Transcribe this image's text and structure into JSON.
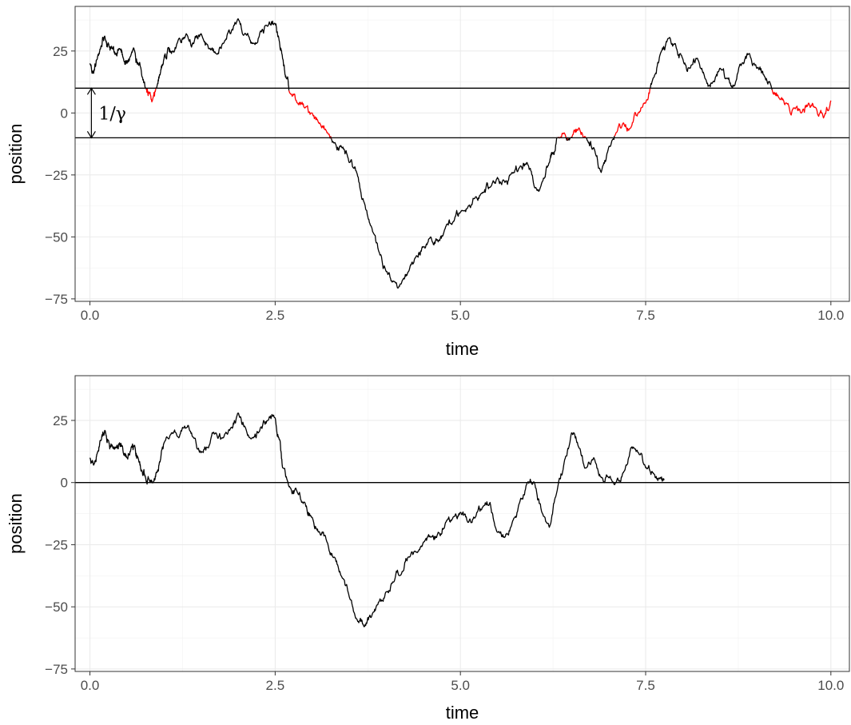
{
  "chart_data": [
    {
      "type": "line",
      "title": "",
      "xlabel": "time",
      "ylabel": "position",
      "xlim": [
        -0.2,
        10.25
      ],
      "ylim": [
        -76,
        43
      ],
      "x_ticks": [
        0.0,
        2.5,
        5.0,
        7.5,
        10.0
      ],
      "x_tick_labels": [
        "0.0",
        "2.5",
        "5.0",
        "7.5",
        "10.0"
      ],
      "y_ticks": [
        25,
        0,
        -25,
        -50,
        -75
      ],
      "y_tick_labels": [
        "25",
        "0",
        "−25",
        "−50",
        "−75"
      ],
      "grid": true,
      "hlines": [
        10,
        -10
      ],
      "annotation": {
        "text": "1/γ",
        "x": 0.02,
        "y_from": 10,
        "y_to": -10
      },
      "highlight_color": "#ff0000",
      "line_color": "#000000",
      "highlight_band": [
        -10,
        10
      ],
      "series": [
        {
          "x": [
            0.0,
            0.05,
            0.1,
            0.15,
            0.2,
            0.25,
            0.3,
            0.35,
            0.4,
            0.45,
            0.5,
            0.55,
            0.6,
            0.65,
            0.7,
            0.75,
            0.8,
            0.85,
            0.9,
            0.95,
            1.0,
            1.05,
            1.1,
            1.2,
            1.3,
            1.4,
            1.5,
            1.6,
            1.7,
            1.8,
            1.9,
            2.0,
            2.1,
            2.2,
            2.3,
            2.4,
            2.5,
            2.55,
            2.6,
            2.65,
            2.7,
            2.8,
            2.9,
            3.0,
            3.1,
            3.2,
            3.3,
            3.4,
            3.5,
            3.6,
            3.7,
            3.8,
            3.9,
            4.0,
            4.1,
            4.2,
            4.3,
            4.4,
            4.5,
            4.6,
            4.7,
            4.8,
            4.9,
            5.0,
            5.1,
            5.2,
            5.3,
            5.4,
            5.5,
            5.6,
            5.7,
            5.8,
            5.9,
            6.0,
            6.1,
            6.2,
            6.25,
            6.3,
            6.4,
            6.5,
            6.6,
            6.7,
            6.8,
            6.9,
            7.0,
            7.1,
            7.2,
            7.3,
            7.4,
            7.5,
            7.6,
            7.7,
            7.8,
            7.9,
            8.0,
            8.1,
            8.2,
            8.3,
            8.4,
            8.5,
            8.6,
            8.7,
            8.8,
            8.9,
            9.0,
            9.1,
            9.2,
            9.3,
            9.4,
            9.5,
            9.6,
            9.7,
            9.8,
            9.9,
            10.0
          ],
          "y": [
            20,
            16,
            22,
            27,
            31,
            28,
            26,
            24,
            26,
            22,
            20,
            23,
            25,
            20,
            15,
            10,
            8,
            6,
            10,
            16,
            22,
            26,
            24,
            30,
            32,
            28,
            32,
            26,
            24,
            28,
            32,
            38,
            32,
            28,
            33,
            35,
            36,
            30,
            22,
            14,
            8,
            4,
            2,
            0,
            -4,
            -8,
            -12,
            -14,
            -20,
            -24,
            -36,
            -46,
            -56,
            -64,
            -68,
            -69,
            -64,
            -58,
            -54,
            -50,
            -52,
            -46,
            -44,
            -40,
            -38,
            -34,
            -32,
            -30,
            -26,
            -28,
            -24,
            -22,
            -20,
            -30,
            -28,
            -20,
            -16,
            -10,
            -8,
            -10,
            -6,
            -10,
            -14,
            -24,
            -14,
            -8,
            -4,
            -6,
            0,
            4,
            14,
            24,
            30,
            28,
            22,
            18,
            22,
            14,
            12,
            18,
            14,
            11,
            20,
            24,
            18,
            15,
            10,
            6,
            4,
            2,
            0,
            4,
            2,
            -2,
            5
          ]
        }
      ]
    },
    {
      "type": "line",
      "title": "",
      "xlabel": "time",
      "ylabel": "position",
      "xlim": [
        -0.2,
        10.25
      ],
      "ylim": [
        -76,
        43
      ],
      "x_ticks": [
        0.0,
        2.5,
        5.0,
        7.5,
        10.0
      ],
      "x_tick_labels": [
        "0.0",
        "2.5",
        "5.0",
        "7.5",
        "10.0"
      ],
      "y_ticks": [
        25,
        0,
        -25,
        -50,
        -75
      ],
      "y_tick_labels": [
        "25",
        "0",
        "−25",
        "−50",
        "−75"
      ],
      "grid": true,
      "hlines": [
        0
      ],
      "line_color": "#000000",
      "series": [
        {
          "x": [
            0.0,
            0.05,
            0.1,
            0.15,
            0.2,
            0.25,
            0.3,
            0.35,
            0.4,
            0.45,
            0.5,
            0.55,
            0.6,
            0.65,
            0.7,
            0.75,
            0.8,
            0.85,
            0.9,
            0.95,
            1.0,
            1.1,
            1.2,
            1.3,
            1.4,
            1.5,
            1.6,
            1.7,
            1.8,
            1.9,
            2.0,
            2.1,
            2.2,
            2.3,
            2.4,
            2.5,
            2.55,
            2.6,
            2.7,
            2.8,
            2.9,
            3.0,
            3.1,
            3.2,
            3.3,
            3.4,
            3.5,
            3.6,
            3.7,
            3.8,
            3.9,
            4.0,
            4.1,
            4.2,
            4.3,
            4.4,
            4.5,
            4.6,
            4.7,
            4.8,
            4.9,
            5.0,
            5.1,
            5.2,
            5.3,
            5.4,
            5.5,
            5.6,
            5.7,
            5.8,
            5.9,
            6.0,
            6.1,
            6.2,
            6.3,
            6.4,
            6.5,
            6.6,
            6.7,
            6.8,
            6.9,
            7.0,
            7.1,
            7.2,
            7.3,
            7.4,
            7.5,
            7.6,
            7.7,
            7.75
          ],
          "y": [
            10,
            7,
            12,
            17,
            21,
            17,
            15,
            14,
            16,
            12,
            10,
            13,
            15,
            10,
            5,
            2,
            1,
            0,
            4,
            9,
            16,
            20,
            18,
            22,
            18,
            12,
            14,
            20,
            18,
            22,
            28,
            22,
            18,
            22,
            25,
            26,
            18,
            6,
            -2,
            -4,
            -8,
            -14,
            -20,
            -24,
            -30,
            -38,
            -46,
            -55,
            -58,
            -54,
            -48,
            -44,
            -40,
            -37,
            -30,
            -28,
            -24,
            -22,
            -20,
            -16,
            -14,
            -12,
            -16,
            -14,
            -10,
            -8,
            -20,
            -22,
            -16,
            -8,
            0,
            0,
            -12,
            -18,
            -4,
            8,
            20,
            14,
            6,
            10,
            2,
            2,
            0,
            4,
            14,
            12,
            6,
            4,
            2,
            1
          ]
        }
      ]
    }
  ]
}
